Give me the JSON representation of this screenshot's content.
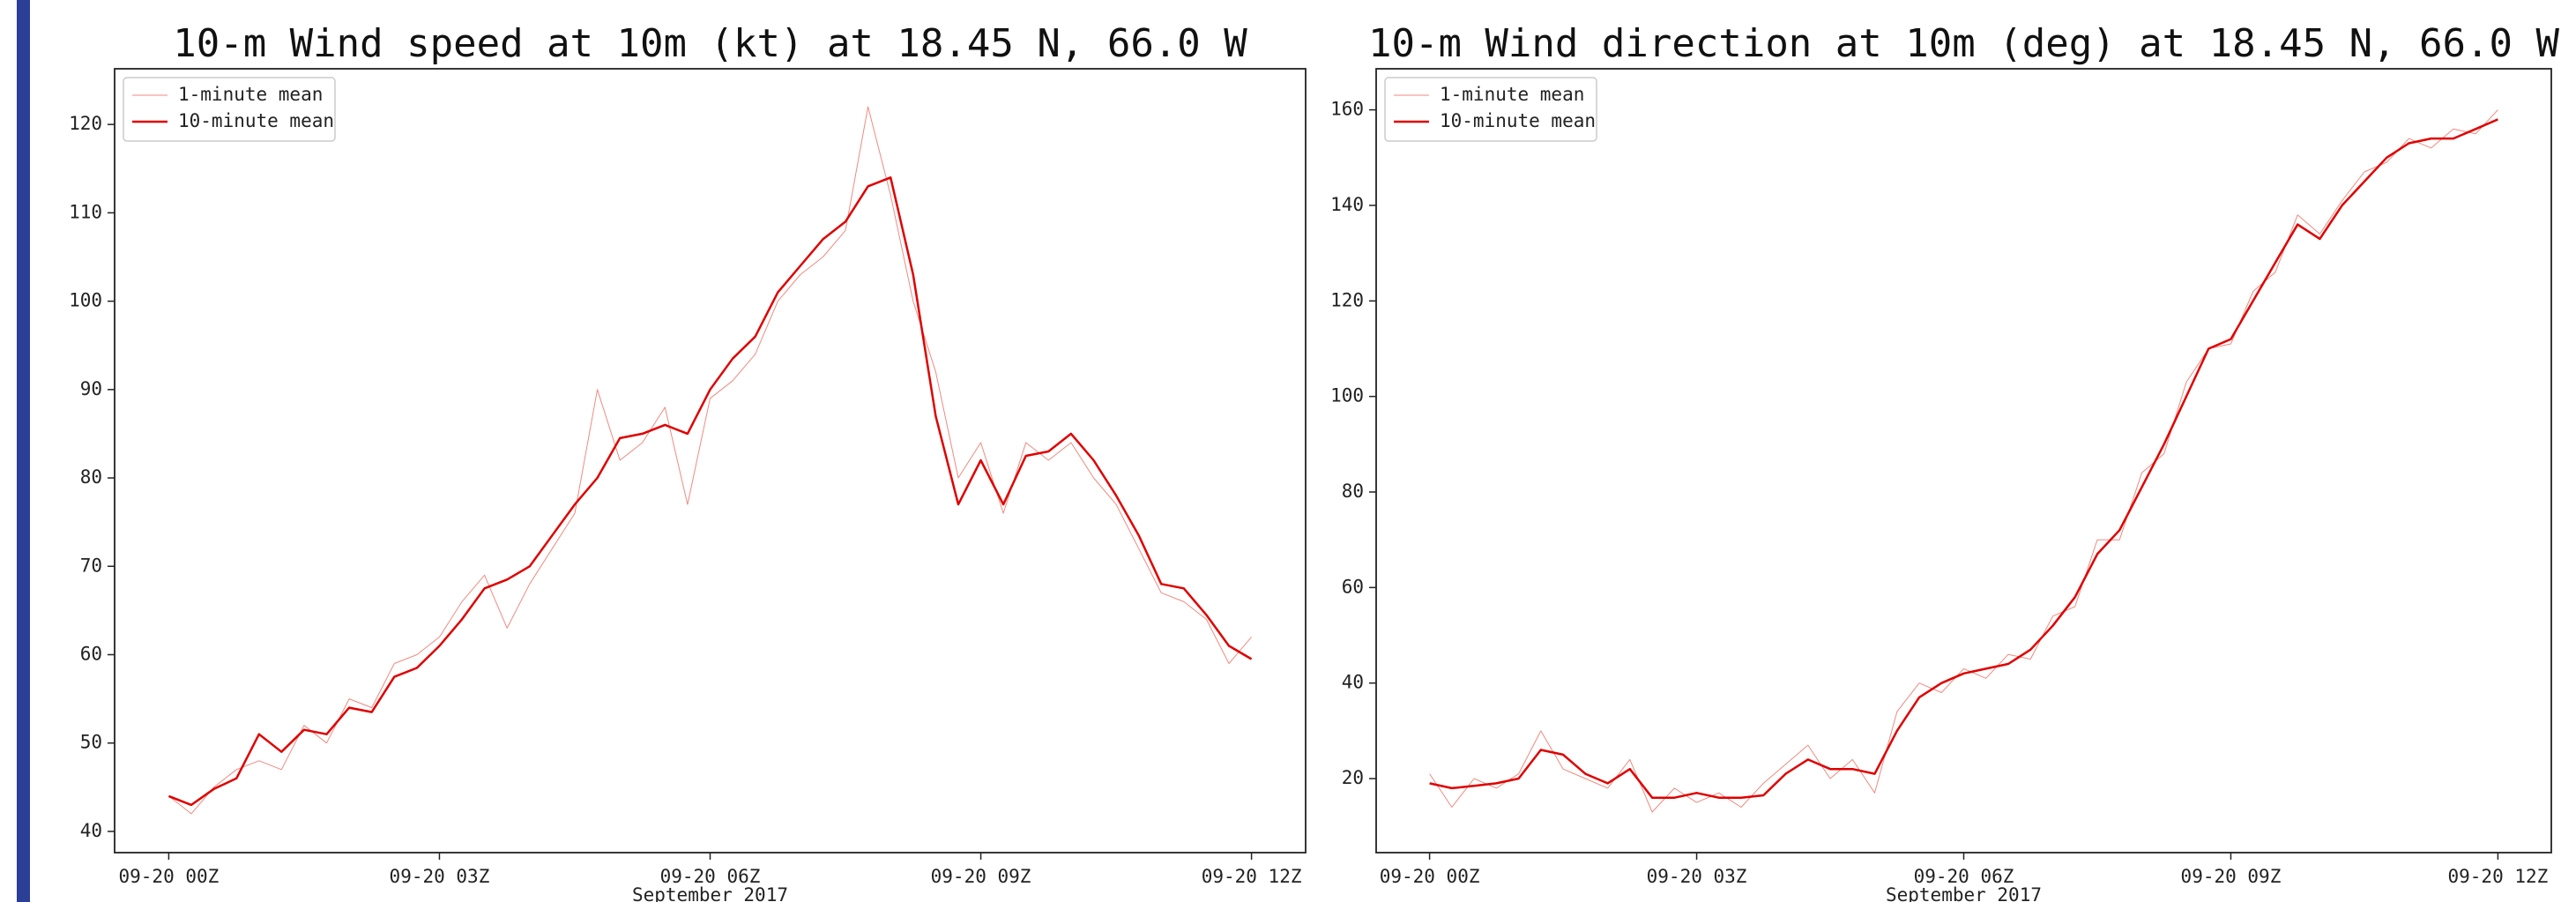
{
  "chart_data": [
    {
      "type": "line",
      "title": "10-m Wind speed at 10m (kt) at 18.45 N, 66.0 W",
      "xlabel": "September 2017",
      "x": [
        0,
        0.25,
        0.5,
        0.75,
        1,
        1.25,
        1.5,
        1.75,
        2,
        2.25,
        2.5,
        2.75,
        3,
        3.25,
        3.5,
        3.75,
        4,
        4.25,
        4.5,
        4.75,
        5,
        5.25,
        5.5,
        5.75,
        6,
        6.25,
        6.5,
        6.75,
        7,
        7.25,
        7.5,
        7.75,
        8,
        8.25,
        8.5,
        8.75,
        9,
        9.25,
        9.5,
        9.75,
        10,
        10.25,
        10.5,
        10.75,
        11,
        11.25,
        11.5,
        11.75,
        12
      ],
      "xlim": [
        -0.6,
        12.6
      ],
      "xticks": [
        {
          "value": 0,
          "label": "09-20 00Z"
        },
        {
          "value": 3,
          "label": "09-20 03Z"
        },
        {
          "value": 6,
          "label": "09-20 06Z"
        },
        {
          "value": 9,
          "label": "09-20 09Z"
        },
        {
          "value": 12,
          "label": "09-20 12Z"
        }
      ],
      "ylim": [
        37.6,
        126.3
      ],
      "yticks": [
        40,
        50,
        60,
        70,
        80,
        90,
        100,
        110,
        120
      ],
      "legend": "upper left",
      "series": [
        {
          "name": "1-minute mean",
          "color": "#f08a80",
          "linewidth": 1,
          "values": [
            44,
            42,
            45,
            47,
            48,
            47,
            52,
            50,
            55,
            54,
            59,
            60,
            62,
            66,
            69,
            63,
            68,
            72,
            76,
            90,
            82,
            84,
            88,
            77,
            89,
            91,
            94,
            100,
            103,
            105,
            108,
            122,
            112,
            100,
            92,
            80,
            84,
            76,
            84,
            82,
            84,
            80,
            77,
            72,
            67,
            66,
            64,
            59,
            62
          ]
        },
        {
          "name": "10-minute mean",
          "color": "#e00000",
          "linewidth": 2.5,
          "values": [
            44,
            43,
            44.8,
            46,
            51,
            49,
            51.5,
            51,
            54,
            53.5,
            57.5,
            58.5,
            61,
            64,
            67.5,
            68.5,
            70,
            73.5,
            77,
            80,
            84.5,
            85,
            86,
            85,
            90,
            93.5,
            96,
            101,
            104,
            107,
            109,
            113,
            114,
            103,
            87,
            77,
            82,
            77,
            82.5,
            83,
            85,
            82,
            78,
            73.5,
            68,
            67.5,
            64.5,
            61,
            59.5
          ]
        }
      ]
    },
    {
      "type": "line",
      "title": "10-m Wind direction at 10m (deg) at 18.45 N, 66.0 W",
      "xlabel": "September 2017",
      "x": [
        0,
        0.25,
        0.5,
        0.75,
        1,
        1.25,
        1.5,
        1.75,
        2,
        2.25,
        2.5,
        2.75,
        3,
        3.25,
        3.5,
        3.75,
        4,
        4.25,
        4.5,
        4.75,
        5,
        5.25,
        5.5,
        5.75,
        6,
        6.25,
        6.5,
        6.75,
        7,
        7.25,
        7.5,
        7.75,
        8,
        8.25,
        8.5,
        8.75,
        9,
        9.25,
        9.5,
        9.75,
        10,
        10.25,
        10.5,
        10.75,
        11,
        11.25,
        11.5,
        11.75,
        12
      ],
      "xlim": [
        -0.6,
        12.6
      ],
      "xticks": [
        {
          "value": 0,
          "label": "09-20 00Z"
        },
        {
          "value": 3,
          "label": "09-20 03Z"
        },
        {
          "value": 6,
          "label": "09-20 06Z"
        },
        {
          "value": 9,
          "label": "09-20 09Z"
        },
        {
          "value": 12,
          "label": "09-20 12Z"
        }
      ],
      "ylim": [
        4.5,
        168.6
      ],
      "yticks": [
        20,
        40,
        60,
        80,
        100,
        120,
        140,
        160
      ],
      "legend": "upper left",
      "series": [
        {
          "name": "1-minute mean",
          "color": "#f08a80",
          "linewidth": 1,
          "values": [
            21,
            14,
            20,
            18,
            21,
            30,
            22,
            20,
            18,
            24,
            13,
            18,
            15,
            17,
            14,
            19,
            23,
            27,
            20,
            24,
            17,
            34,
            40,
            38,
            43,
            41,
            46,
            45,
            54,
            56,
            70,
            70,
            84,
            88,
            103,
            110,
            111,
            122,
            126,
            138,
            134,
            141,
            147,
            149,
            154,
            152,
            156,
            155,
            160
          ]
        },
        {
          "name": "10-minute mean",
          "color": "#e00000",
          "linewidth": 2.5,
          "values": [
            19,
            18,
            18.5,
            19,
            20,
            26,
            25,
            21,
            19,
            22,
            16,
            16,
            17,
            16,
            16,
            16.5,
            21,
            24,
            22,
            22,
            21,
            30,
            37,
            40,
            42,
            43,
            44,
            47,
            52,
            58,
            67,
            72,
            81,
            90,
            100,
            110,
            112,
            120,
            128,
            136,
            133,
            140,
            145,
            150,
            153,
            154,
            154,
            156,
            158
          ]
        }
      ]
    }
  ]
}
